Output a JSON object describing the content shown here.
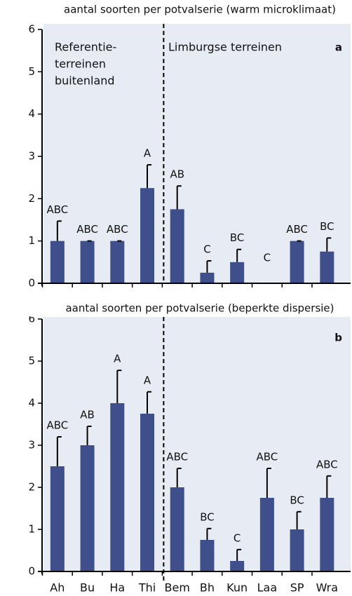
{
  "chart_data": [
    {
      "type": "bar",
      "title": "aantal soorten per potvalserie (warm microklimaat)",
      "values": [
        1,
        1,
        1,
        2.25,
        1.75,
        0.25,
        0.5,
        0,
        1,
        0.75
      ],
      "errors": [
        0.47,
        0,
        0,
        0.55,
        0.55,
        0.28,
        0.3,
        0,
        0,
        0.32
      ],
      "letters": [
        "ABC",
        "ABC",
        "ABC",
        "A",
        "AB",
        "C",
        "BC",
        "C",
        "ABC",
        "BC"
      ],
      "region_labels": [
        [
          "Referentie-",
          "terreinen",
          "buitenland"
        ],
        [
          "Limburgse terreinen"
        ]
      ],
      "panel_label": "a",
      "color": "#3f4f8c",
      "ylim": [
        0,
        6
      ],
      "yticks": [
        0,
        1,
        2,
        3,
        4,
        5,
        6
      ]
    },
    {
      "type": "bar",
      "title": "aantal soorten per potvalserie (beperkte dispersie)",
      "categories": [
        "Ah",
        "Bu",
        "Ha",
        "Thi",
        "Bem",
        "Bh",
        "Kun",
        "Laa",
        "SP",
        "Wra"
      ],
      "values": [
        2.5,
        3,
        4,
        3.75,
        2,
        0.75,
        0.25,
        1.75,
        1,
        1.75
      ],
      "errors": [
        0.7,
        0.45,
        0.78,
        0.52,
        0.45,
        0.27,
        0.27,
        0.7,
        0.42,
        0.52
      ],
      "letters": [
        "ABC",
        "AB",
        "A",
        "A",
        "ABC",
        "BC",
        "C",
        "ABC",
        "BC",
        "ABC"
      ],
      "panel_label": "b",
      "color": "#3f4f8c",
      "ylim": [
        0,
        6
      ],
      "yticks": [
        0,
        1,
        2,
        3,
        4,
        5,
        6
      ]
    }
  ]
}
